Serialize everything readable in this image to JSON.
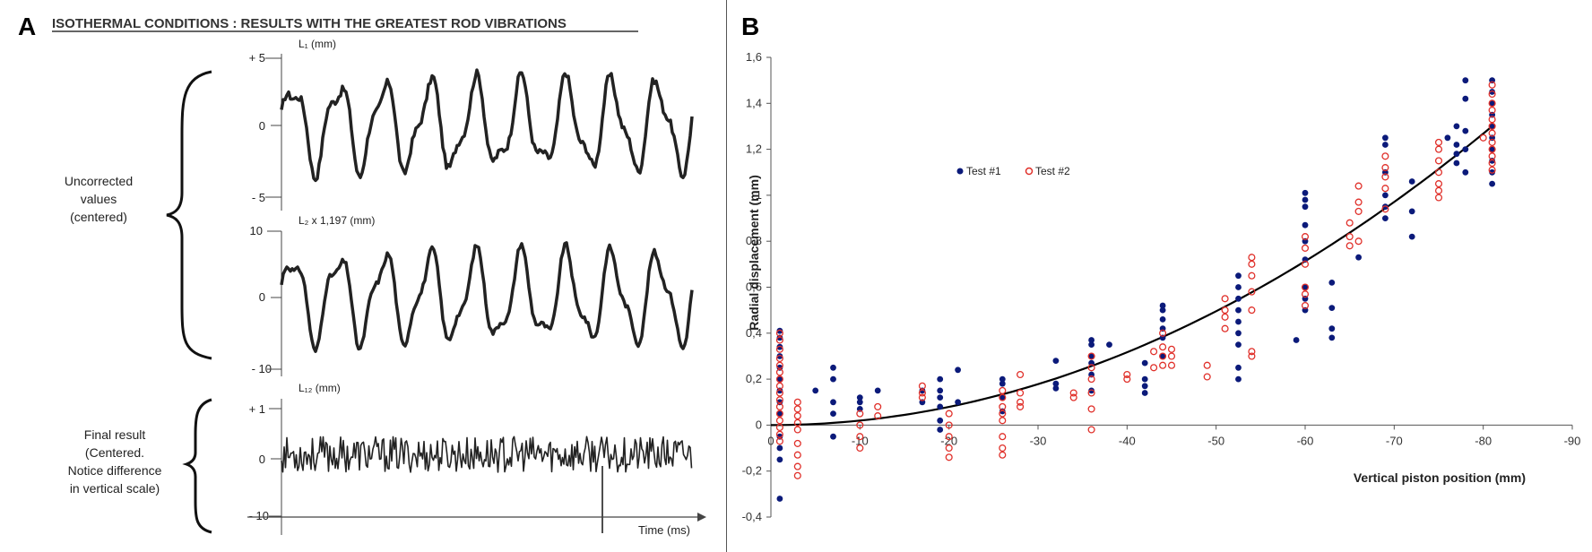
{
  "panel_a": {
    "letter": "A",
    "title": "ISOTHERMAL CONDITIONS : RESULTS WITH THE GREATEST ROD VIBRATIONS",
    "brace1_label": [
      "Uncorrected",
      "values",
      "(centered)"
    ],
    "brace2_label": [
      "Final result",
      "(Centered.",
      "Notice difference",
      "in vertical scale)"
    ],
    "time_label": "Time (ms)",
    "tracks": [
      {
        "label": "L₁ (mm)",
        "ticks": [
          "+ 5",
          "0",
          "- 5"
        ]
      },
      {
        "label": "L₂ x 1,197 (mm)",
        "ticks": [
          "10",
          "0",
          "- 10"
        ]
      },
      {
        "label": "L₁₂ (mm)",
        "ticks": [
          "+ 1",
          "0",
          "- 10"
        ]
      }
    ]
  },
  "panel_b": {
    "letter": "B"
  },
  "chart_data": {
    "type": "scatter",
    "xlabel": "Vertical piston position (mm)",
    "ylabel": "Radial displacement (mm)",
    "xlim": [
      0,
      -90
    ],
    "ylim": [
      -0.4,
      1.6
    ],
    "x_ticks": [
      "0",
      "-10",
      "-20",
      "-30",
      "-40",
      "-50",
      "-60",
      "-70",
      "-80",
      "-90"
    ],
    "y_ticks": [
      "-0,4",
      "-0,2",
      "0",
      "0,2",
      "0,4",
      "0,6",
      "0,8",
      "1",
      "1,2",
      "1,4",
      "1,6"
    ],
    "legend_position": "upper-left",
    "colors": {
      "test1": "#0b1a7a",
      "test2": "#e0302a",
      "fit": "#000000"
    },
    "fit_curve": {
      "x": [
        0,
        -10,
        -20,
        -30,
        -40,
        -50,
        -60,
        -70,
        -81
      ],
      "y": [
        0,
        0.02,
        0.07,
        0.14,
        0.26,
        0.42,
        0.66,
        0.95,
        1.3
      ]
    },
    "series": [
      {
        "name": "Test #1",
        "marker": "filled-circle",
        "points": [
          [
            -1,
            0.41
          ],
          [
            -1,
            0.38
          ],
          [
            -1,
            0.34
          ],
          [
            -1,
            0.3
          ],
          [
            -1,
            0.25
          ],
          [
            -1,
            0.2
          ],
          [
            -1,
            0.15
          ],
          [
            -1,
            0.1
          ],
          [
            -1,
            0.05
          ],
          [
            -1,
            -0.05
          ],
          [
            -1,
            -0.1
          ],
          [
            -1,
            -0.15
          ],
          [
            -1,
            -0.32
          ],
          [
            -5,
            0.15
          ],
          [
            -7,
            0.25
          ],
          [
            -7,
            0.2
          ],
          [
            -7,
            0.1
          ],
          [
            -7,
            0.05
          ],
          [
            -7,
            -0.05
          ],
          [
            -10,
            0.1
          ],
          [
            -10,
            0.12
          ],
          [
            -10,
            0.07
          ],
          [
            -12,
            0.15
          ],
          [
            -17,
            0.1
          ],
          [
            -17,
            0.15
          ],
          [
            -19,
            0.2
          ],
          [
            -19,
            0.15
          ],
          [
            -19,
            0.12
          ],
          [
            -19,
            0.08
          ],
          [
            -19,
            0.02
          ],
          [
            -19,
            -0.02
          ],
          [
            -21,
            0.24
          ],
          [
            -21,
            0.1
          ],
          [
            -26,
            0.2
          ],
          [
            -26,
            0.18
          ],
          [
            -26,
            0.12
          ],
          [
            -26,
            0.06
          ],
          [
            -32,
            0.28
          ],
          [
            -32,
            0.18
          ],
          [
            -32,
            0.16
          ],
          [
            -36,
            0.37
          ],
          [
            -36,
            0.35
          ],
          [
            -36,
            0.3
          ],
          [
            -36,
            0.27
          ],
          [
            -36,
            0.22
          ],
          [
            -36,
            0.15
          ],
          [
            -38,
            0.35
          ],
          [
            -42,
            0.27
          ],
          [
            -42,
            0.2
          ],
          [
            -42,
            0.17
          ],
          [
            -42,
            0.14
          ],
          [
            -44,
            0.52
          ],
          [
            -44,
            0.5
          ],
          [
            -44,
            0.46
          ],
          [
            -44,
            0.42
          ],
          [
            -44,
            0.38
          ],
          [
            -44,
            0.3
          ],
          [
            -52.5,
            0.65
          ],
          [
            -52.5,
            0.6
          ],
          [
            -52.5,
            0.55
          ],
          [
            -52.5,
            0.5
          ],
          [
            -52.5,
            0.45
          ],
          [
            -52.5,
            0.4
          ],
          [
            -52.5,
            0.35
          ],
          [
            -52.5,
            0.25
          ],
          [
            -52.5,
            0.2
          ],
          [
            -59,
            0.37
          ],
          [
            -60,
            1.01
          ],
          [
            -60,
            0.98
          ],
          [
            -60,
            0.95
          ],
          [
            -60,
            0.87
          ],
          [
            -60,
            0.8
          ],
          [
            -60,
            0.72
          ],
          [
            -60,
            0.6
          ],
          [
            -60,
            0.55
          ],
          [
            -60,
            0.5
          ],
          [
            -63,
            0.62
          ],
          [
            -63,
            0.51
          ],
          [
            -63,
            0.42
          ],
          [
            -63,
            0.38
          ],
          [
            -66,
            0.73
          ],
          [
            -69,
            1.25
          ],
          [
            -69,
            1.22
          ],
          [
            -69,
            1.1
          ],
          [
            -69,
            1.0
          ],
          [
            -69,
            0.95
          ],
          [
            -69,
            0.9
          ],
          [
            -72,
            1.06
          ],
          [
            -72,
            0.93
          ],
          [
            -72,
            0.82
          ],
          [
            -76,
            1.25
          ],
          [
            -77,
            1.3
          ],
          [
            -77,
            1.22
          ],
          [
            -77,
            1.18
          ],
          [
            -77,
            1.14
          ],
          [
            -78,
            1.5
          ],
          [
            -78,
            1.42
          ],
          [
            -78,
            1.28
          ],
          [
            -78,
            1.2
          ],
          [
            -78,
            1.1
          ],
          [
            -81,
            1.5
          ],
          [
            -81,
            1.45
          ],
          [
            -81,
            1.4
          ],
          [
            -81,
            1.35
          ],
          [
            -81,
            1.3
          ],
          [
            -81,
            1.25
          ],
          [
            -81,
            1.2
          ],
          [
            -81,
            1.15
          ],
          [
            -81,
            1.1
          ],
          [
            -81,
            1.05
          ]
        ]
      },
      {
        "name": "Test #2",
        "marker": "open-circle",
        "points": [
          [
            -1,
            0.4
          ],
          [
            -1,
            0.37
          ],
          [
            -1,
            0.33
          ],
          [
            -1,
            0.29
          ],
          [
            -1,
            0.26
          ],
          [
            -1,
            0.23
          ],
          [
            -1,
            0.2
          ],
          [
            -1,
            0.17
          ],
          [
            -1,
            0.14
          ],
          [
            -1,
            0.11
          ],
          [
            -1,
            0.08
          ],
          [
            -1,
            0.05
          ],
          [
            -1,
            0.02
          ],
          [
            -1,
            -0.01
          ],
          [
            -1,
            -0.04
          ],
          [
            -1,
            -0.07
          ],
          [
            -3,
            0.1
          ],
          [
            -3,
            0.07
          ],
          [
            -3,
            0.04
          ],
          [
            -3,
            0.01
          ],
          [
            -3,
            -0.02
          ],
          [
            -3,
            -0.08
          ],
          [
            -3,
            -0.13
          ],
          [
            -3,
            -0.18
          ],
          [
            -3,
            -0.22
          ],
          [
            -10,
            0.05
          ],
          [
            -10,
            0.0
          ],
          [
            -10,
            -0.05
          ],
          [
            -10,
            -0.1
          ],
          [
            -12,
            0.08
          ],
          [
            -12,
            0.04
          ],
          [
            -17,
            0.17
          ],
          [
            -17,
            0.14
          ],
          [
            -17,
            0.12
          ],
          [
            -20,
            0.05
          ],
          [
            -20,
            0.0
          ],
          [
            -20,
            -0.05
          ],
          [
            -20,
            -0.1
          ],
          [
            -20,
            -0.14
          ],
          [
            -26,
            0.15
          ],
          [
            -26,
            0.12
          ],
          [
            -26,
            0.08
          ],
          [
            -26,
            0.05
          ],
          [
            -26,
            0.02
          ],
          [
            -26,
            -0.05
          ],
          [
            -26,
            -0.1
          ],
          [
            -26,
            -0.13
          ],
          [
            -28,
            0.22
          ],
          [
            -28,
            0.14
          ],
          [
            -28,
            0.1
          ],
          [
            -28,
            0.08
          ],
          [
            -34,
            0.14
          ],
          [
            -34,
            0.12
          ],
          [
            -36,
            0.3
          ],
          [
            -36,
            0.25
          ],
          [
            -36,
            0.2
          ],
          [
            -36,
            0.14
          ],
          [
            -36,
            0.07
          ],
          [
            -36,
            -0.02
          ],
          [
            -40,
            0.22
          ],
          [
            -40,
            0.2
          ],
          [
            -43,
            0.32
          ],
          [
            -43,
            0.25
          ],
          [
            -44,
            0.4
          ],
          [
            -44,
            0.34
          ],
          [
            -44,
            0.3
          ],
          [
            -44,
            0.26
          ],
          [
            -45,
            0.33
          ],
          [
            -45,
            0.3
          ],
          [
            -45,
            0.26
          ],
          [
            -49,
            0.26
          ],
          [
            -49,
            0.21
          ],
          [
            -51,
            0.55
          ],
          [
            -51,
            0.5
          ],
          [
            -51,
            0.47
          ],
          [
            -51,
            0.42
          ],
          [
            -54,
            0.73
          ],
          [
            -54,
            0.7
          ],
          [
            -54,
            0.65
          ],
          [
            -54,
            0.58
          ],
          [
            -54,
            0.5
          ],
          [
            -54,
            0.32
          ],
          [
            -54,
            0.3
          ],
          [
            -60,
            0.82
          ],
          [
            -60,
            0.77
          ],
          [
            -60,
            0.7
          ],
          [
            -60,
            0.6
          ],
          [
            -60,
            0.57
          ],
          [
            -60,
            0.52
          ],
          [
            -65,
            0.88
          ],
          [
            -65,
            0.82
          ],
          [
            -65,
            0.78
          ],
          [
            -66,
            1.04
          ],
          [
            -66,
            0.97
          ],
          [
            -66,
            0.93
          ],
          [
            -66,
            0.8
          ],
          [
            -69,
            1.17
          ],
          [
            -69,
            1.12
          ],
          [
            -69,
            1.08
          ],
          [
            -69,
            1.03
          ],
          [
            -69,
            0.94
          ],
          [
            -75,
            1.23
          ],
          [
            -75,
            1.2
          ],
          [
            -75,
            1.15
          ],
          [
            -75,
            1.1
          ],
          [
            -75,
            1.05
          ],
          [
            -75,
            1.02
          ],
          [
            -75,
            0.99
          ],
          [
            -80,
            1.25
          ],
          [
            -81,
            1.48
          ],
          [
            -81,
            1.44
          ],
          [
            -81,
            1.4
          ],
          [
            -81,
            1.37
          ],
          [
            -81,
            1.33
          ],
          [
            -81,
            1.3
          ],
          [
            -81,
            1.27
          ],
          [
            -81,
            1.23
          ],
          [
            -81,
            1.2
          ],
          [
            -81,
            1.17
          ],
          [
            -81,
            1.14
          ],
          [
            -81,
            1.11
          ]
        ]
      }
    ]
  }
}
